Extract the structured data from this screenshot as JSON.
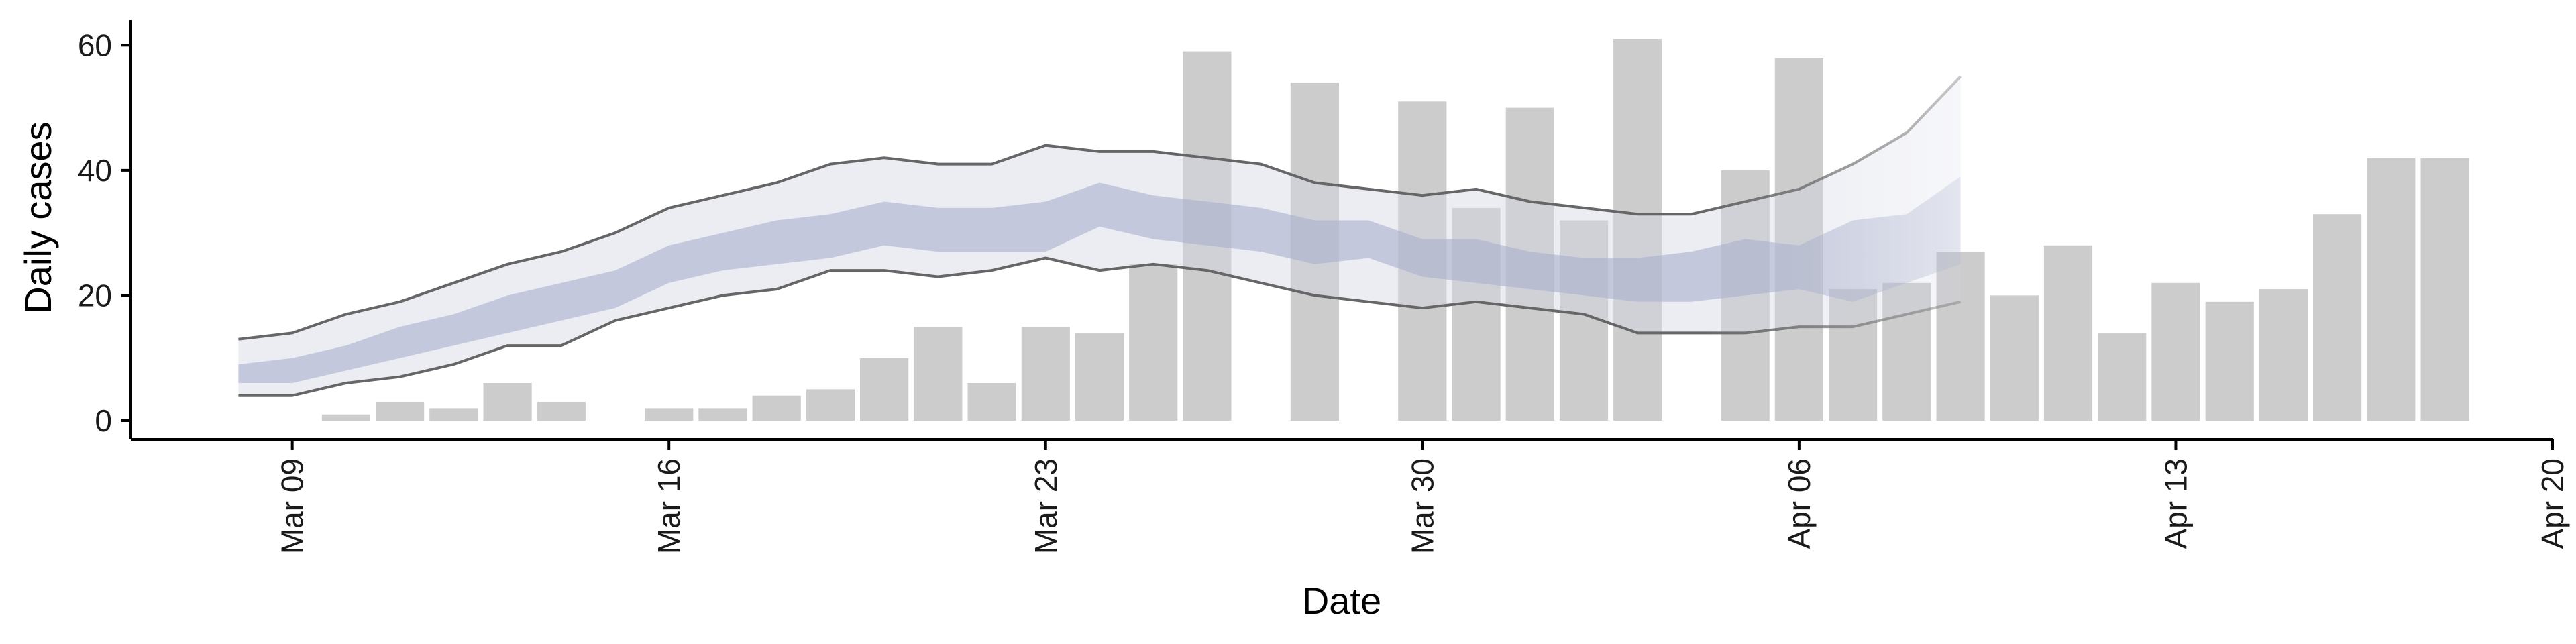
{
  "chart_data": {
    "type": "bar",
    "xlabel": "Date",
    "ylabel": "Daily cases",
    "ylim": [
      -3,
      64
    ],
    "xlim": [
      "2020-03-06",
      "2020-04-20"
    ],
    "grid": false,
    "legend": "none",
    "y_ticks": [
      0,
      20,
      40,
      60
    ],
    "x_ticks": [
      {
        "date": "2020-03-09",
        "label": "Mar 09"
      },
      {
        "date": "2020-03-16",
        "label": "Mar 16"
      },
      {
        "date": "2020-03-23",
        "label": "Mar 23"
      },
      {
        "date": "2020-03-30",
        "label": "Mar 30"
      },
      {
        "date": "2020-04-06",
        "label": "Apr 06"
      },
      {
        "date": "2020-04-13",
        "label": "Apr 13"
      },
      {
        "date": "2020-04-20",
        "label": "Apr 20"
      }
    ],
    "bars": {
      "color": "#cccccc",
      "dates": [
        "2020-03-10",
        "2020-03-11",
        "2020-03-12",
        "2020-03-13",
        "2020-03-14",
        "2020-03-16",
        "2020-03-17",
        "2020-03-18",
        "2020-03-19",
        "2020-03-20",
        "2020-03-21",
        "2020-03-22",
        "2020-03-23",
        "2020-03-24",
        "2020-03-25",
        "2020-03-26",
        "2020-03-28",
        "2020-03-30",
        "2020-03-31",
        "2020-04-01",
        "2020-04-02",
        "2020-04-03",
        "2020-04-05",
        "2020-04-06",
        "2020-04-07",
        "2020-04-08",
        "2020-04-09",
        "2020-04-10",
        "2020-04-11",
        "2020-04-12",
        "2020-04-13",
        "2020-04-14",
        "2020-04-15",
        "2020-04-16",
        "2020-04-17",
        "2020-04-18"
      ],
      "values": [
        1,
        3,
        2,
        6,
        3,
        2,
        2,
        4,
        5,
        10,
        15,
        6,
        15,
        14,
        25,
        59,
        54,
        51,
        34,
        50,
        32,
        61,
        40,
        58,
        21,
        22,
        27,
        20,
        28,
        14,
        22,
        19,
        21,
        33,
        42,
        42
      ]
    },
    "band": {
      "dates": [
        "2020-03-08",
        "2020-03-09",
        "2020-03-10",
        "2020-03-11",
        "2020-03-12",
        "2020-03-13",
        "2020-03-14",
        "2020-03-15",
        "2020-03-16",
        "2020-03-17",
        "2020-03-18",
        "2020-03-19",
        "2020-03-20",
        "2020-03-21",
        "2020-03-22",
        "2020-03-23",
        "2020-03-24",
        "2020-03-25",
        "2020-03-26",
        "2020-03-27",
        "2020-03-28",
        "2020-03-29",
        "2020-03-30",
        "2020-03-31",
        "2020-04-01",
        "2020-04-02",
        "2020-04-03",
        "2020-04-04",
        "2020-04-05",
        "2020-04-06",
        "2020-04-07",
        "2020-04-08",
        "2020-04-09"
      ],
      "outer_upper": [
        13,
        14,
        17,
        19,
        22,
        25,
        27,
        30,
        34,
        36,
        38,
        41,
        42,
        41,
        41,
        44,
        43,
        43,
        42,
        41,
        38,
        37,
        36,
        37,
        35,
        34,
        33,
        33,
        35,
        37,
        41,
        46,
        55
      ],
      "outer_lower": [
        4,
        4,
        6,
        7,
        9,
        12,
        12,
        16,
        18,
        20,
        21,
        24,
        24,
        23,
        24,
        26,
        24,
        25,
        24,
        22,
        20,
        19,
        18,
        19,
        18,
        17,
        14,
        14,
        14,
        15,
        15,
        17,
        19
      ],
      "inner_upper": [
        9,
        10,
        12,
        15,
        17,
        20,
        22,
        24,
        28,
        30,
        32,
        33,
        35,
        34,
        34,
        35,
        38,
        36,
        35,
        34,
        32,
        32,
        29,
        29,
        27,
        26,
        26,
        27,
        29,
        28,
        32,
        33,
        39
      ],
      "inner_lower": [
        6,
        6,
        8,
        10,
        12,
        14,
        16,
        18,
        22,
        24,
        25,
        26,
        28,
        27,
        27,
        27,
        31,
        29,
        28,
        27,
        25,
        26,
        23,
        22,
        21,
        20,
        19,
        19,
        20,
        21,
        19,
        22,
        25
      ],
      "outer_fill": "#d4d7e5",
      "inner_fill": "#a8b0cc",
      "line_color": "#666666"
    }
  }
}
